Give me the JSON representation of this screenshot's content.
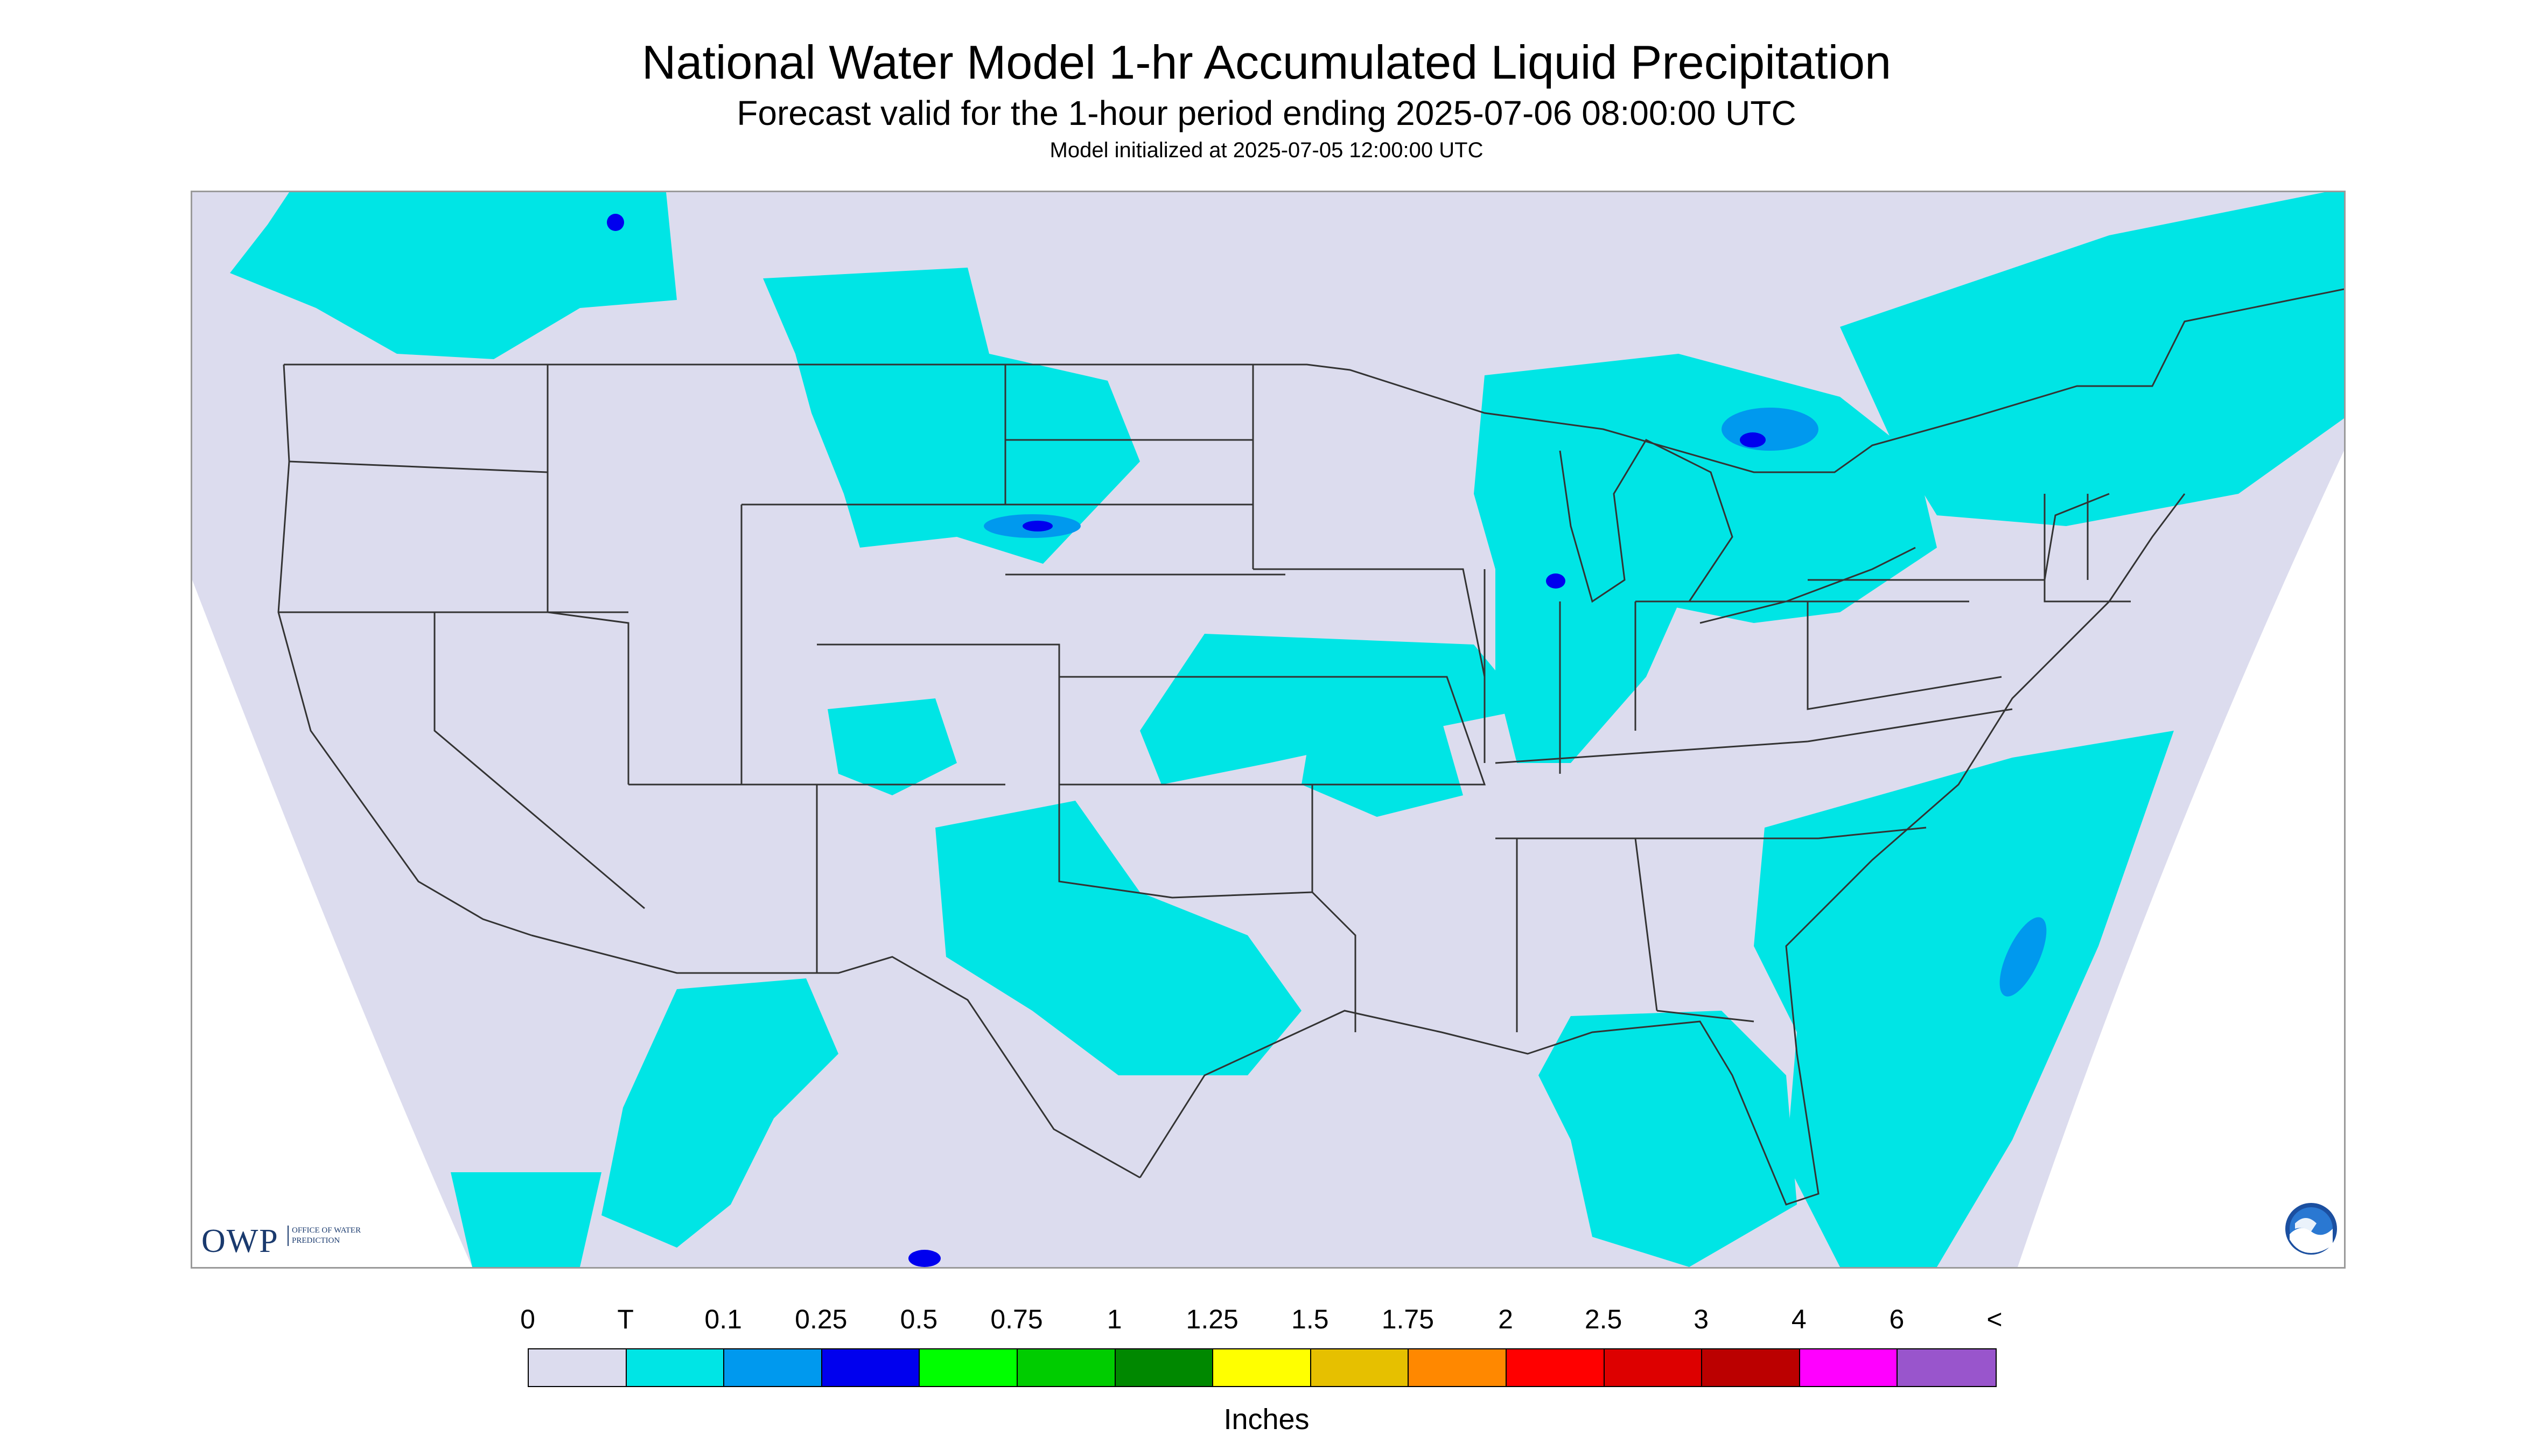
{
  "header": {
    "title": "National Water Model 1-hr Accumulated Liquid Precipitation",
    "subtitle": "Forecast valid for the 1-hour period ending 2025-07-06 08:00:00 UTC",
    "init": "Model initialized at 2025-07-05 12:00:00 UTC"
  },
  "map": {
    "background_color": "#dcdcee",
    "outside_color": "#ffffff",
    "boundary_color": "#333333",
    "precip_colors": {
      "trace": "#00e5e5",
      "light": "#0099ee",
      "moderate": "#0000ee"
    }
  },
  "logos": {
    "owp_text": "OWP",
    "owp_sub": "OFFICE OF WATER PREDICTION",
    "noaa_icon": "noaa-logo-icon"
  },
  "legend": {
    "labels": [
      "0",
      "T",
      "0.1",
      "0.25",
      "0.5",
      "0.75",
      "1",
      "1.25",
      "1.5",
      "1.75",
      "2",
      "2.5",
      "3",
      "4",
      "6",
      "<"
    ],
    "colors": [
      "#dcdcee",
      "#00e5e5",
      "#0099ee",
      "#0000ee",
      "#00ff00",
      "#00cc00",
      "#008800",
      "#ffff00",
      "#e6c000",
      "#ff8800",
      "#ff0000",
      "#dd0000",
      "#bb0000",
      "#ff00ff",
      "#9955cc"
    ],
    "units": "Inches"
  }
}
